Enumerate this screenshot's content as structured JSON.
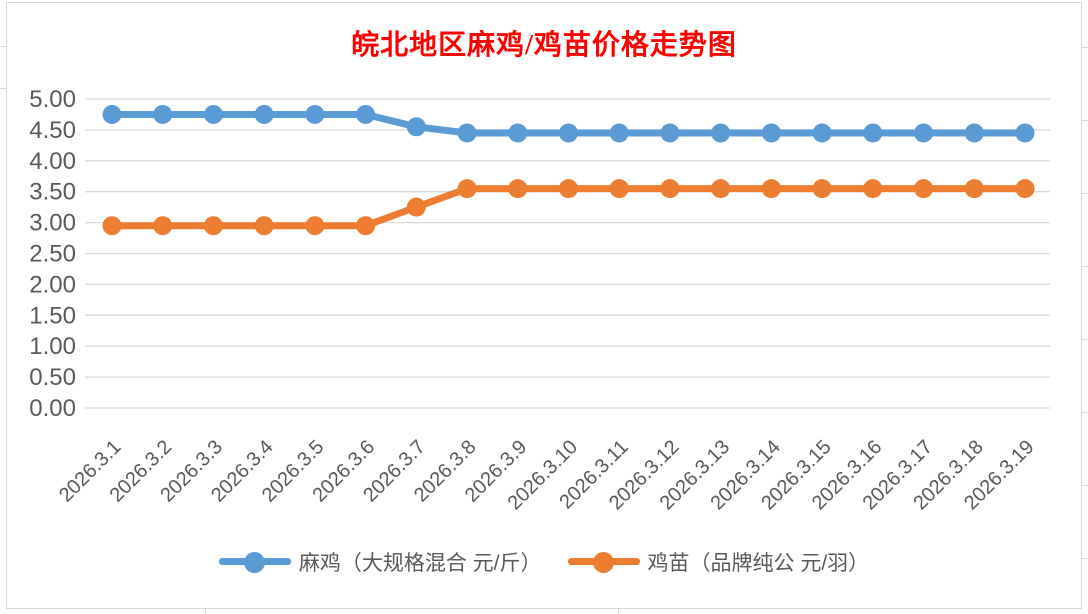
{
  "chart_data": {
    "type": "line",
    "title": "皖北地区麻鸡/鸡苗价格走势图",
    "title_color": "#FF0000",
    "categories": [
      "2026.3.1",
      "2026.3.2",
      "2026.3.3",
      "2026.3.4",
      "2026.3.5",
      "2026.3.6",
      "2026.3.7",
      "2026.3.8",
      "2026.3.9",
      "2026.3.10",
      "2026.3.11",
      "2026.3.12",
      "2026.3.13",
      "2026.3.14",
      "2026.3.15",
      "2026.3.16",
      "2026.3.17",
      "2026.3.18",
      "2026.3.19"
    ],
    "series": [
      {
        "name": "麻鸡（大规格混合 元/斤）",
        "color": "#5B9BD5",
        "values": [
          4.75,
          4.75,
          4.75,
          4.75,
          4.75,
          4.75,
          4.55,
          4.45,
          4.45,
          4.45,
          4.45,
          4.45,
          4.45,
          4.45,
          4.45,
          4.45,
          4.45,
          4.45,
          4.45
        ]
      },
      {
        "name": "鸡苗（品牌纯公 元/羽）",
        "color": "#ED7D31",
        "values": [
          2.95,
          2.95,
          2.95,
          2.95,
          2.95,
          2.95,
          3.25,
          3.55,
          3.55,
          3.55,
          3.55,
          3.55,
          3.55,
          3.55,
          3.55,
          3.55,
          3.55,
          3.55,
          3.55
        ]
      }
    ],
    "ylim": [
      0,
      5
    ],
    "ytick_step": 0.5,
    "ytick_decimals": 2,
    "xlabel": "",
    "ylabel": "",
    "grid": true,
    "legend_position": "bottom",
    "axis_label_color": "#595959",
    "gridline_color": "#D9D9D9"
  }
}
